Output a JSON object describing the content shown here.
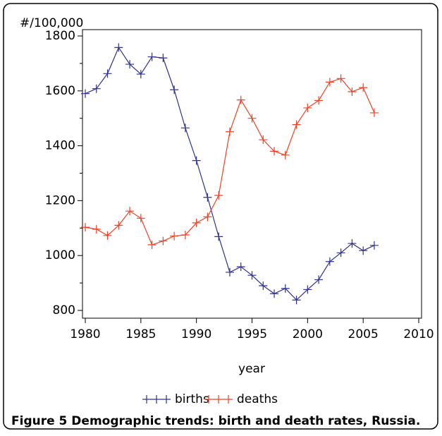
{
  "chart_data": {
    "type": "line",
    "y_axis_label": "#/100,000",
    "x_axis_label": "year",
    "caption_label": "Figure 5",
    "caption": "Demographic trends: birth and death rates, Russia.",
    "x": [
      1980,
      1981,
      1982,
      1983,
      1984,
      1985,
      1986,
      1987,
      1988,
      1989,
      1990,
      1991,
      1992,
      1993,
      1994,
      1995,
      1996,
      1997,
      1998,
      1999,
      2000,
      2001,
      2002,
      2003,
      2004,
      2005,
      2006
    ],
    "series": [
      {
        "name": "births",
        "color": "#2e3192",
        "values": [
          1590,
          1608,
          1663,
          1758,
          1697,
          1661,
          1724,
          1720,
          1604,
          1465,
          1346,
          1212,
          1069,
          939,
          959,
          928,
          890,
          861,
          880,
          838,
          876,
          912,
          978,
          1010,
          1044,
          1018,
          1037
        ]
      },
      {
        "name": "deaths",
        "color": "#ef4123",
        "values": [
          1103,
          1096,
          1073,
          1110,
          1162,
          1136,
          1039,
          1053,
          1071,
          1075,
          1119,
          1141,
          1219,
          1451,
          1567,
          1500,
          1422,
          1380,
          1366,
          1477,
          1538,
          1565,
          1632,
          1645,
          1597,
          1612,
          1520
        ]
      }
    ],
    "xlim": [
      1980,
      2010
    ],
    "xticks": [
      1980,
      1985,
      1990,
      1995,
      2000,
      2005,
      2010
    ],
    "ylim": [
      800,
      1800
    ],
    "yticks": [
      800,
      1000,
      1200,
      1400,
      1600,
      1800
    ],
    "yminorticks": [
      900,
      1100,
      1300,
      1500,
      1700
    ],
    "marker": "plus"
  }
}
